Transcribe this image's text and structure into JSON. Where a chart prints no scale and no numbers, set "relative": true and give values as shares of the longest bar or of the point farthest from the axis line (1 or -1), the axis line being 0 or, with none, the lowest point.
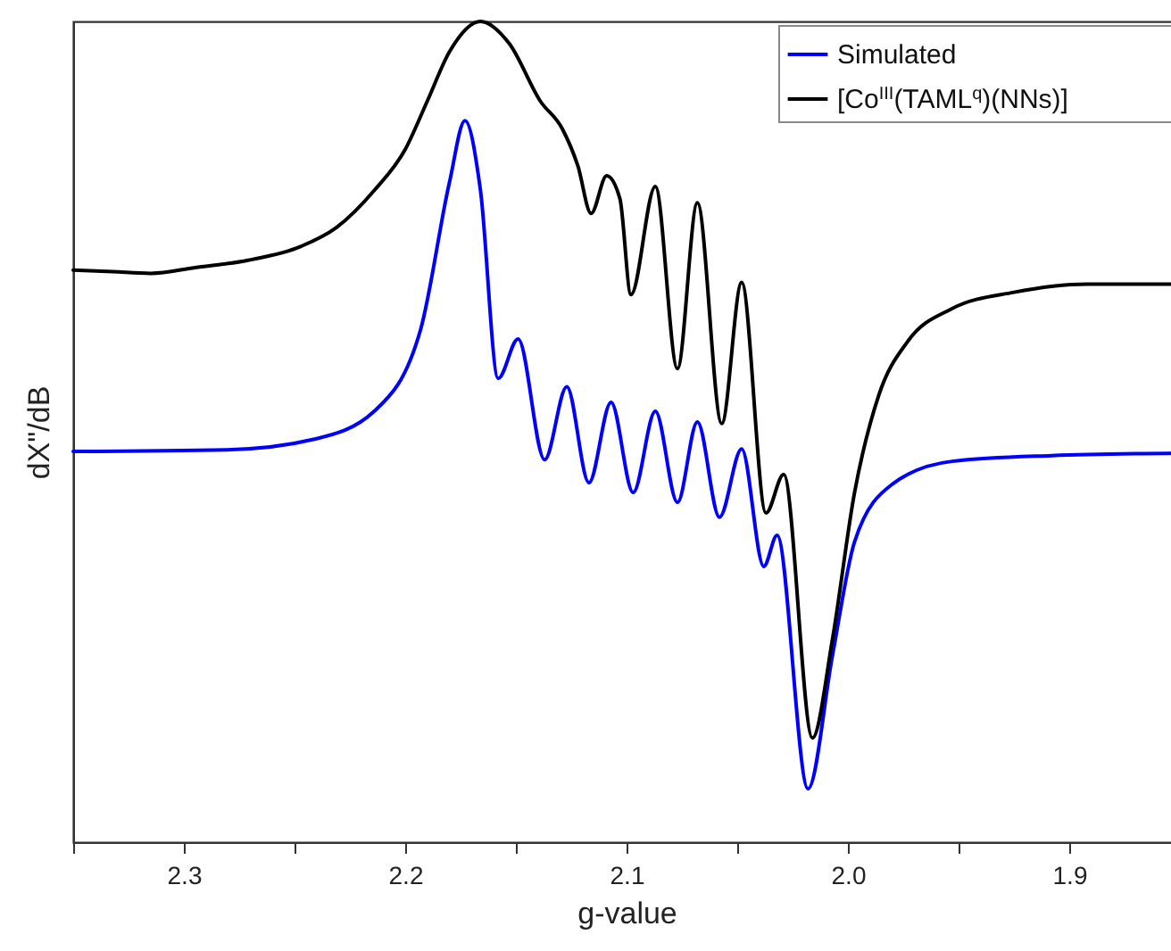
{
  "chart_data": {
    "type": "line",
    "xlabel": "g-value",
    "ylabel": "dX\"/dB",
    "relative": true,
    "legend": "top right",
    "grid": false,
    "xlim": [
      2.35,
      1.85
    ],
    "xticks": [
      {
        "value": 2.35,
        "label": null
      },
      2.3,
      {
        "value": 2.25,
        "label": null
      },
      2.2,
      {
        "value": 2.15,
        "label": null
      },
      2.1,
      {
        "value": 2.05,
        "label": null
      },
      {
        "value": 2.0,
        "label": "2.0"
      },
      {
        "value": 1.95,
        "label": null
      },
      1.9,
      {
        "value": 1.85,
        "label": null
      }
    ],
    "series": [
      {
        "name": "Simulated",
        "color": "#0000ff",
        "x": [
          2.35,
          2.281,
          2.241,
          2.214,
          2.193,
          2.18,
          2.173,
          2.166,
          2.158,
          2.149,
          2.137,
          2.127,
          2.117,
          2.107,
          2.097,
          2.087,
          2.077,
          2.068,
          2.058,
          2.048,
          2.038,
          2.032,
          2.018,
          2.007,
          1.997,
          1.98,
          1.953,
          1.908,
          1.85
        ],
        "values": [
          0.476,
          0.478,
          0.491,
          0.525,
          0.625,
          0.804,
          0.879,
          0.794,
          0.565,
          0.613,
          0.466,
          0.555,
          0.438,
          0.536,
          0.426,
          0.525,
          0.414,
          0.512,
          0.396,
          0.479,
          0.336,
          0.374,
          0.065,
          0.227,
          0.366,
          0.436,
          0.464,
          0.471,
          0.474
        ]
      },
      {
        "name": "[Co$^{III}$(TAML$^{q}$)(NNs)]",
        "color": "#000000",
        "x": [
          2.35,
          2.332,
          2.315,
          2.295,
          2.271,
          2.247,
          2.231,
          2.214,
          2.2,
          2.19,
          2.18,
          2.166,
          2.153,
          2.139,
          2.129,
          2.122,
          2.116,
          2.109,
          2.103,
          2.098,
          2.087,
          2.077,
          2.068,
          2.057,
          2.048,
          2.037,
          2.029,
          2.016,
          2.007,
          1.997,
          1.986,
          1.973,
          1.953,
          1.925,
          1.892,
          1.85
        ],
        "values": [
          0.697,
          0.695,
          0.693,
          0.7,
          0.709,
          0.726,
          0.749,
          0.794,
          0.844,
          0.903,
          0.963,
          1.0,
          0.973,
          0.903,
          0.869,
          0.824,
          0.766,
          0.812,
          0.784,
          0.667,
          0.799,
          0.577,
          0.779,
          0.51,
          0.682,
          0.401,
          0.448,
          0.127,
          0.247,
          0.426,
          0.545,
          0.61,
          0.65,
          0.67,
          0.68,
          0.68
        ]
      }
    ]
  }
}
